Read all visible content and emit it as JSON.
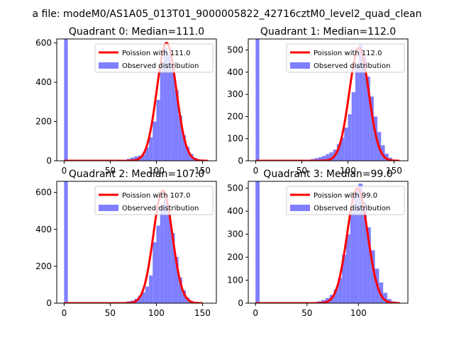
{
  "suptitle": "a file: modeM0/AS1A05_013T01_9000005822_42716cztM0_level2_quad_clean",
  "chart_data": [
    {
      "type": "bar",
      "title": "Quadrant 0: Median=111.0",
      "legend": {
        "placement": "top-right",
        "entries": [
          "Poission with 111.0",
          "Observed distribution"
        ]
      },
      "xlim": [
        -8,
        165
      ],
      "ylim": [
        0,
        620
      ],
      "xticks": [
        0,
        50,
        100,
        150
      ],
      "yticks": [
        0,
        200,
        400,
        600
      ],
      "hist_color": "#7f7fff",
      "line_color": "#ff0000",
      "bin_width": 4,
      "bins": [
        [
          0,
          620
        ],
        [
          64,
          3
        ],
        [
          68,
          10
        ],
        [
          72,
          16
        ],
        [
          76,
          22
        ],
        [
          80,
          26
        ],
        [
          84,
          34
        ],
        [
          88,
          68
        ],
        [
          92,
          120
        ],
        [
          96,
          200
        ],
        [
          100,
          310
        ],
        [
          104,
          470
        ],
        [
          108,
          575
        ],
        [
          112,
          545
        ],
        [
          116,
          470
        ],
        [
          120,
          360
        ],
        [
          124,
          230
        ],
        [
          128,
          130
        ],
        [
          132,
          70
        ],
        [
          136,
          35
        ],
        [
          140,
          15
        ],
        [
          144,
          8
        ]
      ],
      "poisson_mean": 111.0,
      "poisson_peak": 600,
      "line_x": [
        0,
        156
      ]
    },
    {
      "type": "bar",
      "title": "Quadrant 1: Median=112.0",
      "legend": {
        "placement": "top-right",
        "entries": [
          "Poission with 112.0",
          "Observed distribution"
        ]
      },
      "xlim": [
        -8,
        165
      ],
      "ylim": [
        0,
        550
      ],
      "xticks": [
        0,
        50,
        100,
        150
      ],
      "yticks": [
        0,
        100,
        200,
        300,
        400,
        500
      ],
      "hist_color": "#7f7fff",
      "line_color": "#ff0000",
      "bin_width": 4,
      "bins": [
        [
          0,
          550
        ],
        [
          52,
          3
        ],
        [
          56,
          5
        ],
        [
          60,
          8
        ],
        [
          64,
          12
        ],
        [
          68,
          16
        ],
        [
          72,
          22
        ],
        [
          76,
          30
        ],
        [
          80,
          38
        ],
        [
          84,
          50
        ],
        [
          88,
          75
        ],
        [
          92,
          105
        ],
        [
          96,
          150
        ],
        [
          100,
          210
        ],
        [
          104,
          310
        ],
        [
          108,
          430
        ],
        [
          112,
          525
        ],
        [
          116,
          470
        ],
        [
          120,
          380
        ],
        [
          124,
          290
        ],
        [
          128,
          200
        ],
        [
          132,
          130
        ],
        [
          136,
          70
        ],
        [
          140,
          32
        ],
        [
          144,
          14
        ],
        [
          148,
          6
        ]
      ],
      "poisson_mean": 112.0,
      "poisson_peak": 510,
      "line_x": [
        0,
        156
      ]
    },
    {
      "type": "bar",
      "title": "Quadrant 2: Median=107.0",
      "legend": {
        "placement": "top-right",
        "entries": [
          "Poission with 107.0",
          "Observed distribution"
        ]
      },
      "xlim": [
        -8,
        165
      ],
      "ylim": [
        0,
        660
      ],
      "xticks": [
        0,
        50,
        100,
        150
      ],
      "yticks": [
        0,
        200,
        400,
        600
      ],
      "hist_color": "#7f7fff",
      "line_color": "#ff0000",
      "bin_width": 4,
      "bins": [
        [
          0,
          660
        ],
        [
          64,
          5
        ],
        [
          68,
          10
        ],
        [
          72,
          14
        ],
        [
          76,
          24
        ],
        [
          80,
          40
        ],
        [
          84,
          60
        ],
        [
          88,
          90
        ],
        [
          92,
          150
        ],
        [
          96,
          330
        ],
        [
          100,
          420
        ],
        [
          104,
          530
        ],
        [
          108,
          570
        ],
        [
          112,
          480
        ],
        [
          116,
          380
        ],
        [
          120,
          250
        ],
        [
          124,
          140
        ],
        [
          128,
          70
        ],
        [
          132,
          30
        ],
        [
          136,
          12
        ]
      ],
      "poisson_mean": 107.0,
      "poisson_peak": 610,
      "line_x": [
        0,
        150
      ]
    },
    {
      "type": "bar",
      "title": "Quadrant 3: Median=99.0",
      "legend": {
        "placement": "top-right",
        "entries": [
          "Poission with 99.0",
          "Observed distribution"
        ]
      },
      "xlim": [
        -7,
        148
      ],
      "ylim": [
        0,
        530
      ],
      "xticks": [
        0,
        50,
        100
      ],
      "yticks": [
        0,
        100,
        200,
        300,
        400,
        500
      ],
      "hist_color": "#7f7fff",
      "line_color": "#ff0000",
      "bin_width": 4,
      "bins": [
        [
          0,
          530
        ],
        [
          56,
          4
        ],
        [
          60,
          8
        ],
        [
          64,
          14
        ],
        [
          68,
          22
        ],
        [
          72,
          36
        ],
        [
          76,
          60
        ],
        [
          80,
          110
        ],
        [
          84,
          210
        ],
        [
          88,
          300
        ],
        [
          92,
          400
        ],
        [
          96,
          490
        ],
        [
          100,
          520
        ],
        [
          104,
          440
        ],
        [
          108,
          330
        ],
        [
          112,
          230
        ],
        [
          116,
          150
        ],
        [
          120,
          90
        ],
        [
          124,
          45
        ],
        [
          128,
          18
        ],
        [
          132,
          8
        ]
      ],
      "poisson_mean": 99.0,
      "poisson_peak": 500,
      "line_x": [
        0,
        140
      ]
    }
  ]
}
